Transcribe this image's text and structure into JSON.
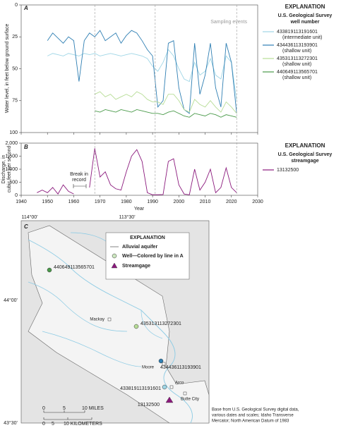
{
  "chart_data": [
    {
      "type": "line",
      "panel_label": "A",
      "ylabel": "Water level, in feet below ground surface",
      "annotation": "Sampling events",
      "sampling_events": [
        1968,
        1991,
        2022
      ],
      "legend_heading": "EXPLANATION",
      "legend_title": [
        "U.S. Geological Survey",
        "well number"
      ],
      "xlim": [
        1940,
        2030
      ],
      "xticks": [
        1940,
        1950,
        1960,
        1970,
        1980,
        1990,
        2000,
        2010,
        2020,
        2030
      ],
      "ylim": [
        0,
        100
      ],
      "y_inverted": true,
      "yticks": [
        0,
        25,
        50,
        75,
        100
      ],
      "x": [
        1946,
        1948,
        1950,
        1952,
        1954,
        1956,
        1958,
        1960,
        1962,
        1964,
        1966,
        1968,
        1970,
        1972,
        1974,
        1976,
        1978,
        1980,
        1982,
        1984,
        1986,
        1988,
        1990,
        1992,
        1994,
        1996,
        1998,
        2000,
        2002,
        2004,
        2006,
        2008,
        2010,
        2012,
        2014,
        2016,
        2018,
        2020,
        2022
      ],
      "series": [
        {
          "name": "433819113191601",
          "unit": "(intermediate unit)",
          "color": "#9fd6e6",
          "values": [
            null,
            null,
            40,
            38,
            39,
            40,
            38,
            39,
            40,
            38,
            39,
            38,
            40,
            39,
            38,
            39,
            40,
            39,
            38,
            39,
            40,
            42,
            48,
            52,
            45,
            35,
            40,
            50,
            58,
            60,
            45,
            55,
            52,
            42,
            55,
            58,
            40,
            45,
            75
          ]
        },
        {
          "name": "434436113193901",
          "unit": "(shallow unit)",
          "color": "#2f7fb3",
          "values": [
            null,
            null,
            28,
            22,
            26,
            30,
            25,
            28,
            60,
            28,
            22,
            25,
            20,
            28,
            25,
            22,
            30,
            24,
            20,
            22,
            28,
            35,
            40,
            80,
            75,
            30,
            28,
            65,
            82,
            85,
            30,
            70,
            55,
            30,
            65,
            80,
            30,
            45,
            85
          ]
        },
        {
          "name": "435313113272301",
          "unit": "(shallow unit)",
          "color": "#b7dd96",
          "values": [
            null,
            null,
            null,
            null,
            null,
            null,
            null,
            null,
            null,
            null,
            null,
            70,
            68,
            72,
            70,
            74,
            72,
            70,
            72,
            68,
            70,
            74,
            76,
            76,
            78,
            70,
            70,
            75,
            82,
            84,
            74,
            78,
            80,
            75,
            80,
            84,
            76,
            80,
            85
          ]
        },
        {
          "name": "440649113565701",
          "unit": "(shallow unit)",
          "color": "#4a9a4a",
          "values": [
            null,
            null,
            null,
            null,
            null,
            null,
            null,
            null,
            null,
            null,
            null,
            83,
            84,
            82,
            83,
            84,
            82,
            83,
            84,
            82,
            83,
            84,
            85,
            85,
            86,
            84,
            83,
            85,
            87,
            88,
            85,
            86,
            87,
            85,
            86,
            88,
            86,
            87,
            88
          ]
        }
      ]
    },
    {
      "type": "line",
      "panel_label": "B",
      "ylabel": [
        "Discharge, in",
        "cubic feet per second"
      ],
      "xlabel": "Year",
      "break_annotation": [
        "Break in",
        "record"
      ],
      "legend_heading": "EXPLANATION",
      "legend_title": [
        "U.S. Geological Survey",
        "streamgage"
      ],
      "xlim": [
        1940,
        2030
      ],
      "xticks": [
        1940,
        1950,
        1960,
        1970,
        1980,
        1990,
        2000,
        2010,
        2020,
        2030
      ],
      "ylim": [
        0,
        2000
      ],
      "yticks": [
        0,
        500,
        {
          "value": 1000,
          "label": "1,000"
        },
        {
          "value": 1500,
          "label": "1,500"
        },
        {
          "value": 2000,
          "label": "2,000"
        }
      ],
      "x": [
        1946,
        1948,
        1950,
        1952,
        1954,
        1956,
        1958,
        1960,
        1962,
        1964,
        1966,
        1968,
        1970,
        1972,
        1974,
        1976,
        1978,
        1980,
        1982,
        1984,
        1986,
        1988,
        1990,
        1992,
        1994,
        1996,
        1998,
        2000,
        2002,
        2004,
        2006,
        2008,
        2010,
        2012,
        2014,
        2016,
        2018,
        2020,
        2022
      ],
      "series": [
        {
          "name": "13132500",
          "color": "#8b1a7d",
          "values": [
            100,
            200,
            100,
            300,
            50,
            400,
            150,
            50,
            null,
            null,
            300,
            1800,
            700,
            900,
            400,
            250,
            200,
            900,
            1500,
            1750,
            1300,
            100,
            20,
            20,
            30,
            1300,
            1400,
            400,
            50,
            20,
            1000,
            200,
            500,
            1000,
            100,
            300,
            1050,
            300,
            100
          ]
        }
      ]
    }
  ],
  "map": {
    "panel_label": "C",
    "lon_labels": [
      "114°00'",
      "113°30'"
    ],
    "lat_labels": [
      "44°00'",
      "43°30'"
    ],
    "legend": {
      "heading": "EXPLANATION",
      "items": [
        "Alluvial aquifer",
        "Well—Colored by line in A",
        "Streamgage"
      ]
    },
    "wells": [
      "440649113565701",
      "435313113272301",
      "434436113193901",
      "433819113191601"
    ],
    "streamgage": "13132500",
    "towns": [
      "Mackay",
      "Moore",
      "Arco",
      "Butte City"
    ],
    "scale": {
      "miles": [
        "0",
        "5",
        "10 MILES"
      ],
      "km": [
        "0",
        "5",
        "10 KILOMETERS"
      ]
    },
    "source": [
      "Base from U.S. Geological Survey digital data,",
      "various dates and scales; Idaho Transverse",
      "Mercator; North American Datum of 1983"
    ]
  }
}
